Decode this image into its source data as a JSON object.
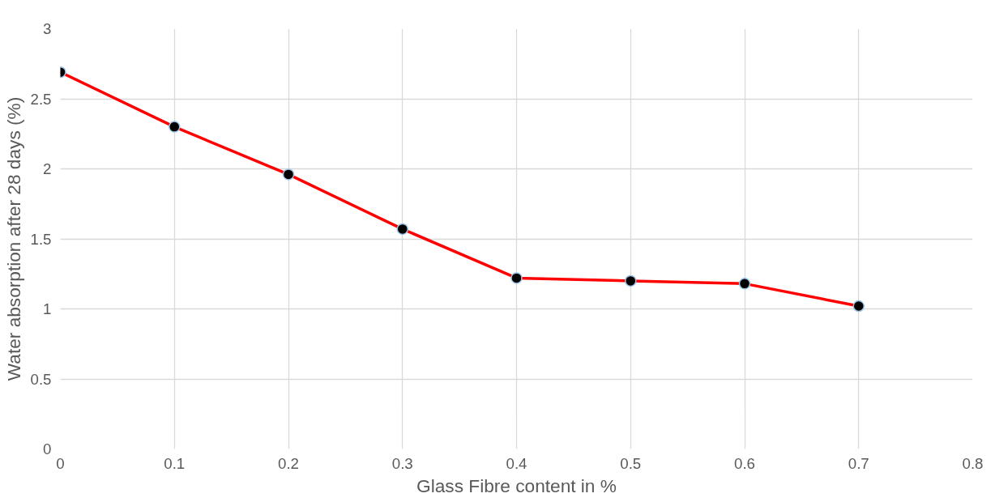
{
  "chart_data": {
    "type": "line",
    "xlabel": "Glass Fibre content in %",
    "ylabel": "Water absorption after 28 days (%)",
    "x": [
      0,
      0.1,
      0.2,
      0.3,
      0.4,
      0.5,
      0.6,
      0.7
    ],
    "series": [
      {
        "color": "#ff0000",
        "values": [
          2.69,
          2.3,
          1.96,
          1.57,
          1.22,
          1.2,
          1.18,
          1.02
        ]
      }
    ],
    "xlim": [
      0,
      0.8
    ],
    "xticks": [
      0,
      0.1,
      0.2,
      0.3,
      0.4,
      0.5,
      0.6,
      0.7,
      0.8
    ],
    "ylim": [
      0,
      3
    ],
    "yticks": [
      0,
      0.5,
      1,
      1.5,
      2,
      2.5,
      3
    ],
    "grid": true,
    "marker": "circle",
    "line_style": "solid"
  }
}
